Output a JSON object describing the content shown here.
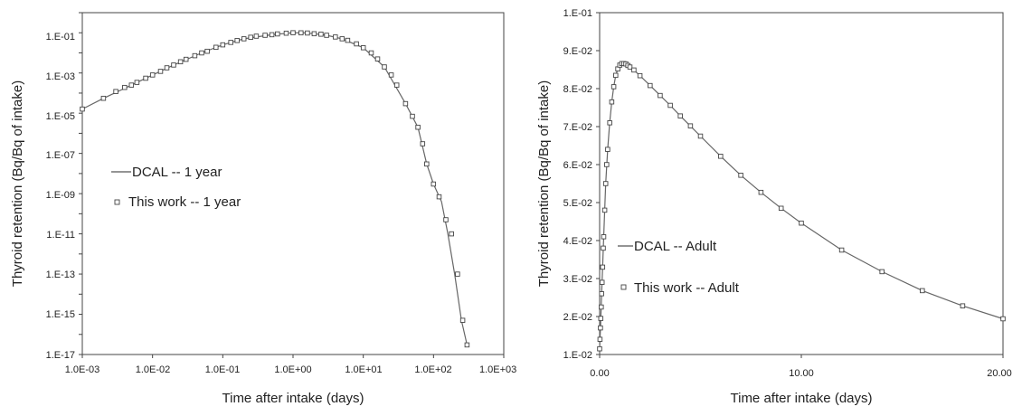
{
  "chart_data": [
    {
      "type": "line",
      "panel": "left",
      "title": "",
      "xlabel": "Time after intake (days)",
      "ylabel": "Thyroid retention (Bq/Bq of intake)",
      "x_scale": "log",
      "y_scale": "log",
      "xlim": [
        0.001,
        1000
      ],
      "ylim": [
        1e-17,
        1
      ],
      "x_tick_labels": [
        "1.0E-03",
        "1.0E-02",
        "1.0E-01",
        "1.0E+00",
        "1.0E+01",
        "1.0E+02",
        "1.0E+03"
      ],
      "y_tick_labels": [
        "1.E-01",
        "1.E-03",
        "1.E-05",
        "1.E-07",
        "1.E-09",
        "1.E-11",
        "1.E-13",
        "1.E-15",
        "1.E-17"
      ],
      "grid": false,
      "legend_position": "left",
      "series": [
        {
          "name": "DCAL -- 1 year",
          "style": "line",
          "x": [
            0.001,
            0.002,
            0.005,
            0.01,
            0.02,
            0.05,
            0.1,
            0.2,
            0.5,
            1,
            1.5,
            2,
            3,
            5,
            10,
            20,
            40,
            60,
            80,
            100,
            130,
            160,
            200,
            250,
            300
          ],
          "y": [
            1.6e-05,
            5.5e-05,
            0.00025,
            0.0008,
            0.0025,
            0.01,
            0.025,
            0.05,
            0.08,
            0.1,
            0.098,
            0.09,
            0.075,
            0.05,
            0.018,
            0.002,
            3e-05,
            2e-06,
            3e-08,
            3e-09,
            4e-10,
            1e-11,
            1e-13,
            5e-16,
            3e-17
          ]
        },
        {
          "name": "This work -- 1 year",
          "style": "markers",
          "x": [
            0.001,
            0.002,
            0.003,
            0.004,
            0.005,
            0.006,
            0.008,
            0.01,
            0.013,
            0.016,
            0.02,
            0.025,
            0.03,
            0.04,
            0.05,
            0.06,
            0.08,
            0.1,
            0.13,
            0.16,
            0.2,
            0.25,
            0.3,
            0.4,
            0.5,
            0.6,
            0.8,
            1,
            1.3,
            1.6,
            2,
            2.5,
            3,
            4,
            5,
            6,
            8,
            10,
            13,
            16,
            20,
            25,
            30,
            40,
            50,
            60,
            70,
            80,
            100,
            120,
            150,
            180,
            220,
            260,
            300
          ],
          "y": [
            1.6e-05,
            5.5e-05,
            0.00012,
            0.00019,
            0.00025,
            0.00034,
            0.00055,
            0.0008,
            0.0012,
            0.0018,
            0.0025,
            0.0036,
            0.0048,
            0.0072,
            0.01,
            0.012,
            0.019,
            0.025,
            0.033,
            0.041,
            0.05,
            0.06,
            0.068,
            0.075,
            0.08,
            0.088,
            0.095,
            0.1,
            0.099,
            0.097,
            0.09,
            0.085,
            0.075,
            0.062,
            0.05,
            0.042,
            0.028,
            0.018,
            0.01,
            0.005,
            0.002,
            0.0008,
            0.00025,
            3e-05,
            7e-06,
            2e-06,
            3e-07,
            3e-08,
            3e-09,
            7e-10,
            5e-11,
            1e-11,
            1e-13,
            5e-16,
            3e-17
          ]
        }
      ]
    },
    {
      "type": "line",
      "panel": "right",
      "title": "",
      "xlabel": "Time after intake (days)",
      "ylabel": "Thyroid retention (Bq/Bq of intake)",
      "x_scale": "linear",
      "y_scale": "linear",
      "xlim": [
        0,
        20
      ],
      "ylim": [
        0.01,
        0.1
      ],
      "x_tick_labels": [
        "0.00",
        "10.00",
        "20.00"
      ],
      "y_tick_labels": [
        "1.E-01",
        "9.E-02",
        "8.E-02",
        "7.E-02",
        "6.E-02",
        "5.E-02",
        "4.E-02",
        "3.E-02",
        "2.E-02",
        "1.E-02"
      ],
      "grid": false,
      "legend_position": "left",
      "series": [
        {
          "name": "DCAL -- Adult",
          "style": "line",
          "x": [
            0,
            0.05,
            0.1,
            0.15,
            0.2,
            0.25,
            0.3,
            0.4,
            0.5,
            0.6,
            0.7,
            0.8,
            0.9,
            1.0,
            1.1,
            1.2,
            1.3,
            1.4,
            1.5,
            1.7,
            2.0,
            2.5,
            3,
            3.5,
            4,
            5,
            6,
            7,
            8,
            9,
            10,
            12,
            14,
            16,
            18,
            20
          ],
          "y": [
            0.0115,
            0.018,
            0.026,
            0.033,
            0.041,
            0.048,
            0.055,
            0.064,
            0.071,
            0.0765,
            0.0805,
            0.0835,
            0.0852,
            0.0862,
            0.0866,
            0.0866,
            0.0865,
            0.0861,
            0.0857,
            0.0849,
            0.0834,
            0.0808,
            0.0782,
            0.0756,
            0.0728,
            0.0675,
            0.0622,
            0.0572,
            0.0527,
            0.0485,
            0.0446,
            0.0375,
            0.0318,
            0.0268,
            0.0228,
            0.0194
          ]
        },
        {
          "name": "This work -- Adult",
          "style": "markers",
          "x": [
            0,
            0.02,
            0.04,
            0.06,
            0.08,
            0.1,
            0.12,
            0.15,
            0.18,
            0.2,
            0.25,
            0.3,
            0.35,
            0.4,
            0.5,
            0.6,
            0.7,
            0.8,
            0.9,
            1.0,
            1.1,
            1.2,
            1.3,
            1.4,
            1.5,
            1.7,
            2.0,
            2.5,
            3,
            3.5,
            4,
            4.5,
            5,
            6,
            7,
            8,
            9,
            10,
            12,
            14,
            16,
            18,
            20
          ],
          "y": [
            0.0115,
            0.014,
            0.017,
            0.0195,
            0.0225,
            0.026,
            0.029,
            0.033,
            0.038,
            0.041,
            0.048,
            0.055,
            0.06,
            0.064,
            0.071,
            0.0765,
            0.0805,
            0.0835,
            0.0852,
            0.0862,
            0.0866,
            0.0866,
            0.0865,
            0.0861,
            0.0857,
            0.0849,
            0.0834,
            0.0808,
            0.0782,
            0.0756,
            0.0728,
            0.0702,
            0.0675,
            0.0622,
            0.0572,
            0.0527,
            0.0485,
            0.0446,
            0.0375,
            0.0318,
            0.0268,
            0.0228,
            0.0194
          ]
        }
      ]
    }
  ]
}
